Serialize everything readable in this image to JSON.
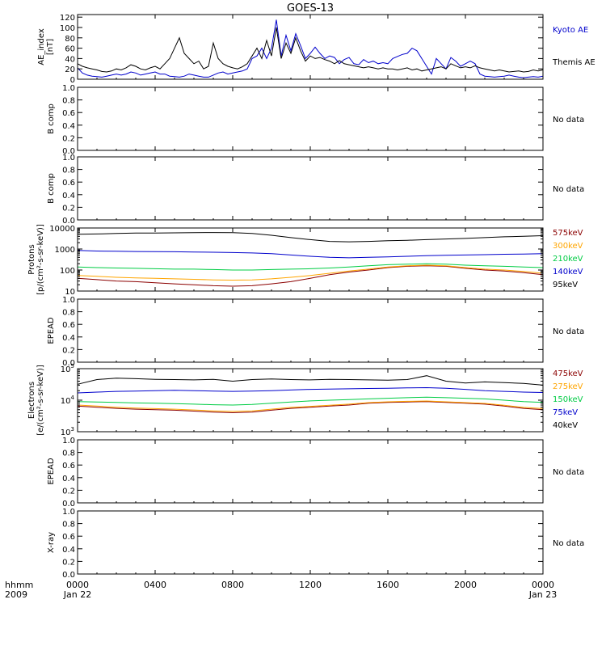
{
  "figure": {
    "title": "GOES-13",
    "time_label": "hhmm",
    "year_label": "2009"
  },
  "x_axis": {
    "ticks": [
      "0000",
      "0400",
      "0800",
      "1200",
      "1600",
      "2000",
      "0000"
    ],
    "tick_hours": [
      0,
      4,
      8,
      12,
      16,
      20,
      24
    ],
    "date_labels": [
      {
        "hour": 0,
        "text": "Jan 22"
      },
      {
        "hour": 24,
        "text": "Jan 23"
      }
    ],
    "range_hours": [
      0,
      24
    ]
  },
  "chart_data": [
    {
      "id": "ae",
      "type": "line",
      "ylabel": "AE_index [nT]",
      "ylim": [
        0,
        125
      ],
      "yticks": [
        0,
        20,
        40,
        60,
        80,
        100,
        120
      ],
      "log": false,
      "series": [
        {
          "name": "Kyoto AE",
          "color": "#0000cc",
          "x_hours": [
            0,
            0.25,
            0.5,
            0.75,
            1,
            1.25,
            1.5,
            1.75,
            2,
            2.25,
            2.5,
            2.75,
            3,
            3.25,
            3.5,
            3.75,
            4,
            4.25,
            4.5,
            4.75,
            5,
            5.25,
            5.5,
            5.75,
            6,
            6.25,
            6.5,
            6.75,
            7,
            7.25,
            7.5,
            7.75,
            8,
            8.25,
            8.5,
            8.75,
            9,
            9.25,
            9.5,
            9.75,
            10,
            10.25,
            10.5,
            10.75,
            11,
            11.25,
            11.5,
            11.75,
            12,
            12.25,
            12.5,
            12.75,
            13,
            13.25,
            13.5,
            13.75,
            14,
            14.25,
            14.5,
            14.75,
            15,
            15.25,
            15.5,
            15.75,
            16,
            16.25,
            16.5,
            16.75,
            17,
            17.25,
            17.5,
            17.75,
            18,
            18.25,
            18.5,
            18.75,
            19,
            19.25,
            19.5,
            19.75,
            20,
            20.25,
            20.5,
            20.75,
            21,
            21.25,
            21.5,
            21.75,
            22,
            22.25,
            22.5,
            22.75,
            23,
            23.25,
            23.5,
            23.75,
            24
          ],
          "values": [
            22,
            12,
            8,
            6,
            5,
            4,
            6,
            8,
            10,
            8,
            10,
            14,
            12,
            8,
            10,
            12,
            14,
            10,
            10,
            6,
            5,
            4,
            6,
            10,
            8,
            6,
            4,
            4,
            8,
            12,
            14,
            10,
            12,
            14,
            16,
            20,
            40,
            45,
            60,
            40,
            60,
            115,
            45,
            85,
            55,
            88,
            65,
            40,
            50,
            62,
            50,
            40,
            45,
            42,
            30,
            38,
            42,
            30,
            28,
            38,
            32,
            35,
            30,
            32,
            30,
            40,
            44,
            48,
            50,
            60,
            55,
            40,
            25,
            10,
            40,
            30,
            20,
            42,
            35,
            25,
            30,
            35,
            30,
            10,
            6,
            5,
            4,
            5,
            6,
            8,
            6,
            4,
            3,
            4,
            5,
            4,
            6
          ]
        },
        {
          "name": "Themis AE",
          "color": "#000000",
          "x_hours": [
            0,
            0.25,
            0.5,
            0.75,
            1,
            1.25,
            1.5,
            1.75,
            2,
            2.25,
            2.5,
            2.75,
            3,
            3.25,
            3.5,
            3.75,
            4,
            4.25,
            4.5,
            4.75,
            5,
            5.25,
            5.5,
            5.75,
            6,
            6.25,
            6.5,
            6.75,
            7,
            7.25,
            7.5,
            7.75,
            8,
            8.25,
            8.5,
            8.75,
            9,
            9.25,
            9.5,
            9.75,
            10,
            10.25,
            10.5,
            10.75,
            11,
            11.25,
            11.5,
            11.75,
            12,
            12.25,
            12.5,
            12.75,
            13,
            13.25,
            13.5,
            13.75,
            14,
            14.25,
            14.5,
            14.75,
            15,
            15.25,
            15.5,
            15.75,
            16,
            16.25,
            16.5,
            16.75,
            17,
            17.25,
            17.5,
            17.75,
            18,
            18.25,
            18.5,
            18.75,
            19,
            19.25,
            19.5,
            19.75,
            20,
            20.25,
            20.5,
            20.75,
            21,
            21.25,
            21.5,
            21.75,
            22,
            22.25,
            22.5,
            22.75,
            23,
            23.25,
            23.5,
            23.75,
            24
          ],
          "values": [
            30,
            25,
            22,
            20,
            18,
            15,
            14,
            16,
            20,
            18,
            22,
            28,
            25,
            20,
            18,
            22,
            25,
            20,
            30,
            40,
            60,
            80,
            50,
            40,
            30,
            35,
            20,
            25,
            70,
            40,
            30,
            25,
            22,
            20,
            24,
            30,
            45,
            60,
            40,
            75,
            45,
            100,
            40,
            70,
            50,
            80,
            55,
            35,
            45,
            40,
            42,
            38,
            35,
            30,
            36,
            30,
            28,
            26,
            24,
            22,
            24,
            22,
            20,
            22,
            20,
            20,
            18,
            20,
            22,
            18,
            20,
            16,
            18,
            20,
            22,
            24,
            20,
            30,
            26,
            22,
            24,
            22,
            26,
            22,
            20,
            18,
            16,
            18,
            16,
            14,
            15,
            16,
            14,
            15,
            18,
            16,
            18
          ]
        }
      ]
    },
    {
      "id": "bcomp1",
      "type": "line",
      "ylabel": "B comp",
      "ylim": [
        0,
        1
      ],
      "yticks": [
        0,
        0.2,
        0.4,
        0.6,
        0.8,
        1.0
      ],
      "log": false,
      "series": [],
      "status": "No data"
    },
    {
      "id": "bcomp2",
      "type": "line",
      "ylabel": "B comp",
      "ylim": [
        0,
        1
      ],
      "yticks": [
        0,
        0.2,
        0.4,
        0.6,
        0.8,
        1.0
      ],
      "log": false,
      "series": [],
      "status": "No data"
    },
    {
      "id": "protons",
      "type": "line",
      "ylabel": "Protons [p/(cm²-s-sr-keV)]",
      "ylim": [
        10,
        10000
      ],
      "yticks": [
        10,
        100,
        1000,
        10000
      ],
      "log": true,
      "series": [
        {
          "name": "575keV",
          "color": "#8b0000",
          "x_hours": [
            0,
            1,
            2,
            3,
            4,
            5,
            6,
            7,
            8,
            9,
            10,
            11,
            12,
            13,
            14,
            15,
            16,
            17,
            18,
            19,
            20,
            21,
            22,
            23,
            24
          ],
          "values": [
            40,
            35,
            30,
            28,
            25,
            22,
            20,
            18,
            17,
            18,
            22,
            28,
            40,
            60,
            80,
            100,
            130,
            150,
            160,
            150,
            120,
            100,
            90,
            75,
            60
          ]
        },
        {
          "name": "300keV",
          "color": "#ffa500",
          "x_hours": [
            0,
            1,
            2,
            3,
            4,
            5,
            6,
            7,
            8,
            9,
            10,
            11,
            12,
            13,
            14,
            15,
            16,
            17,
            18,
            19,
            20,
            21,
            22,
            23,
            24
          ],
          "values": [
            55,
            50,
            45,
            42,
            40,
            38,
            36,
            34,
            33,
            34,
            38,
            45,
            55,
            70,
            90,
            110,
            140,
            160,
            170,
            160,
            130,
            110,
            100,
            85,
            70
          ]
        },
        {
          "name": "210keV",
          "color": "#00cc44",
          "x_hours": [
            0,
            1,
            2,
            3,
            4,
            5,
            6,
            7,
            8,
            9,
            10,
            11,
            12,
            13,
            14,
            15,
            16,
            17,
            18,
            19,
            20,
            21,
            22,
            23,
            24
          ],
          "values": [
            140,
            130,
            125,
            120,
            115,
            110,
            110,
            105,
            100,
            100,
            105,
            110,
            115,
            125,
            140,
            160,
            180,
            190,
            200,
            190,
            170,
            160,
            150,
            140,
            130
          ]
        },
        {
          "name": "140keV",
          "color": "#0000cc",
          "x_hours": [
            0,
            1,
            2,
            3,
            4,
            5,
            6,
            7,
            8,
            9,
            10,
            11,
            12,
            13,
            14,
            15,
            16,
            17,
            18,
            19,
            20,
            21,
            22,
            23,
            24
          ],
          "values": [
            850,
            800,
            780,
            760,
            750,
            740,
            720,
            700,
            680,
            650,
            600,
            520,
            450,
            400,
            380,
            400,
            420,
            450,
            480,
            500,
            520,
            540,
            560,
            580,
            600
          ]
        },
        {
          "name": "95keV",
          "color": "#000000",
          "x_hours": [
            0,
            1,
            2,
            3,
            4,
            5,
            6,
            7,
            8,
            9,
            10,
            11,
            12,
            13,
            14,
            15,
            16,
            17,
            18,
            19,
            20,
            21,
            22,
            23,
            24
          ],
          "values": [
            5000,
            5200,
            5500,
            5700,
            5800,
            5900,
            6000,
            6100,
            6000,
            5500,
            4500,
            3500,
            2800,
            2300,
            2200,
            2300,
            2500,
            2600,
            2800,
            3000,
            3200,
            3500,
            3800,
            4000,
            4300
          ]
        }
      ]
    },
    {
      "id": "epead1",
      "type": "line",
      "ylabel": "EPEAD",
      "ylim": [
        0,
        1
      ],
      "yticks": [
        0,
        0.2,
        0.4,
        0.6,
        0.8,
        1.0
      ],
      "log": false,
      "series": [],
      "status": "No data"
    },
    {
      "id": "electrons",
      "type": "line",
      "ylabel": "Electrons [e/(cm²-s-sr-keV)]",
      "ylim": [
        1000,
        100000
      ],
      "yticks": [
        1000,
        10000,
        100000
      ],
      "ytick_labels": [
        {
          "base": "10",
          "exp": "3"
        },
        {
          "base": "10",
          "exp": "4"
        },
        {
          "base": "10",
          "exp": "5"
        }
      ],
      "log": true,
      "series": [
        {
          "name": "475keV",
          "color": "#8b0000",
          "x_hours": [
            0,
            1,
            2,
            3,
            4,
            5,
            6,
            7,
            8,
            9,
            10,
            11,
            12,
            13,
            14,
            15,
            16,
            17,
            18,
            19,
            20,
            21,
            22,
            23,
            24
          ],
          "values": [
            6500,
            6000,
            5500,
            5200,
            5000,
            4800,
            4500,
            4200,
            4000,
            4200,
            4800,
            5500,
            6000,
            6500,
            7000,
            8000,
            8500,
            8800,
            9000,
            8500,
            8000,
            7500,
            6500,
            5500,
            5000
          ]
        },
        {
          "name": "275keV",
          "color": "#ffa500",
          "x_hours": [
            0,
            1,
            2,
            3,
            4,
            5,
            6,
            7,
            8,
            9,
            10,
            11,
            12,
            13,
            14,
            15,
            16,
            17,
            18,
            19,
            20,
            21,
            22,
            23,
            24
          ],
          "values": [
            7000,
            6500,
            6000,
            5600,
            5400,
            5200,
            4900,
            4600,
            4400,
            4600,
            5200,
            5900,
            6400,
            6900,
            7500,
            8400,
            8900,
            9200,
            9400,
            8900,
            8400,
            7900,
            6900,
            5900,
            5400
          ]
        },
        {
          "name": "150keV",
          "color": "#00cc44",
          "x_hours": [
            0,
            1,
            2,
            3,
            4,
            5,
            6,
            7,
            8,
            9,
            10,
            11,
            12,
            13,
            14,
            15,
            16,
            17,
            18,
            19,
            20,
            21,
            22,
            23,
            24
          ],
          "values": [
            9000,
            8800,
            8500,
            8200,
            8000,
            7800,
            7500,
            7200,
            7000,
            7300,
            8000,
            8800,
            9500,
            10000,
            10500,
            11000,
            11500,
            12000,
            12500,
            12000,
            11500,
            11000,
            10000,
            9000,
            8500
          ]
        },
        {
          "name": "75keV",
          "color": "#0000cc",
          "x_hours": [
            0,
            1,
            2,
            3,
            4,
            5,
            6,
            7,
            8,
            9,
            10,
            11,
            12,
            13,
            14,
            15,
            16,
            17,
            18,
            19,
            20,
            21,
            22,
            23,
            24
          ],
          "values": [
            17000,
            18000,
            19000,
            19500,
            20000,
            20500,
            20000,
            19500,
            19000,
            19500,
            20000,
            21000,
            22000,
            22500,
            23000,
            23500,
            24000,
            24500,
            25000,
            24000,
            22000,
            20000,
            19000,
            18000,
            17500
          ]
        },
        {
          "name": "40keV",
          "color": "#000000",
          "x_hours": [
            0,
            1,
            2,
            3,
            4,
            5,
            6,
            7,
            8,
            9,
            10,
            11,
            12,
            13,
            14,
            15,
            16,
            17,
            18,
            19,
            20,
            21,
            22,
            23,
            24
          ],
          "values": [
            32000,
            45000,
            50000,
            48000,
            46000,
            45000,
            44000,
            46000,
            40000,
            45000,
            47000,
            45000,
            44000,
            46000,
            45000,
            44000,
            43000,
            45000,
            60000,
            40000,
            35000,
            38000,
            36000,
            34000,
            30000
          ]
        }
      ]
    },
    {
      "id": "epead2",
      "type": "line",
      "ylabel": "EPEAD",
      "ylim": [
        0,
        1
      ],
      "yticks": [
        0,
        0.2,
        0.4,
        0.6,
        0.8,
        1.0
      ],
      "log": false,
      "series": [],
      "status": "No data"
    },
    {
      "id": "xray",
      "type": "line",
      "ylabel": "X-ray",
      "ylim": [
        0,
        1
      ],
      "yticks": [
        0,
        0.2,
        0.4,
        0.6,
        0.8,
        1.0
      ],
      "log": false,
      "series": [],
      "status": "No data"
    }
  ]
}
